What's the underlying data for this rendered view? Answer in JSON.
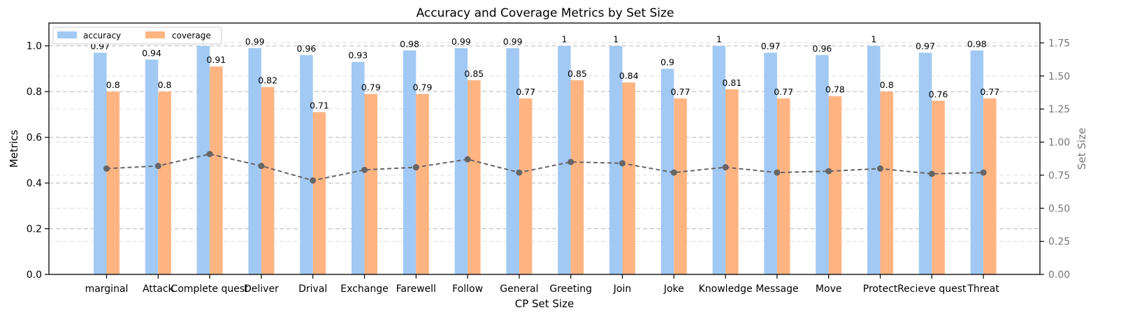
{
  "chart_data": {
    "type": "bar",
    "title": "Accuracy and Coverage Metrics by Set Size",
    "xlabel": "CP Set Size",
    "ylabel": "Metrics",
    "y2label": "Set Size",
    "categories": [
      "marginal",
      "Attack",
      "Complete quest",
      "Deliver",
      "Drival",
      "Exchange",
      "Farewell",
      "Follow",
      "General",
      "Greeting",
      "Join",
      "Joke",
      "Knowledge",
      "Message",
      "Move",
      "Protect",
      "Recieve quest",
      "Threat"
    ],
    "series": [
      {
        "name": "accuracy",
        "axis": "left",
        "kind": "bar",
        "color": "#a1c9f4",
        "values": [
          0.97,
          0.94,
          1,
          0.99,
          0.96,
          0.93,
          0.98,
          0.99,
          0.99,
          1,
          1,
          0.9,
          1,
          0.97,
          0.96,
          1,
          0.97,
          0.98
        ],
        "labels": [
          "0.97",
          "0.94",
          "1",
          "0.99",
          "0.96",
          "0.93",
          "0.98",
          "0.99",
          "0.99",
          "1",
          "1",
          "0.9",
          "1",
          "0.97",
          "0.96",
          "1",
          "0.97",
          "0.98"
        ]
      },
      {
        "name": "coverage",
        "axis": "left",
        "kind": "bar",
        "color": "#ffb482",
        "values": [
          0.8,
          0.8,
          0.91,
          0.82,
          0.71,
          0.79,
          0.79,
          0.85,
          0.77,
          0.85,
          0.84,
          0.77,
          0.81,
          0.77,
          0.78,
          0.8,
          0.76,
          0.77
        ],
        "labels": [
          "0.8",
          "0.8",
          "0.91",
          "0.82",
          "0.71",
          "0.79",
          "0.79",
          "0.85",
          "0.77",
          "0.85",
          "0.84",
          "0.77",
          "0.81",
          "0.77",
          "0.78",
          "0.8",
          "0.76",
          "0.77"
        ]
      },
      {
        "axis": "right",
        "kind": "line",
        "color": "#666666",
        "values": [
          0.8,
          0.82,
          0.91,
          0.82,
          0.71,
          0.79,
          0.81,
          0.87,
          0.77,
          0.85,
          0.84,
          0.77,
          0.81,
          0.77,
          0.78,
          0.8,
          0.76,
          0.77
        ]
      }
    ],
    "ylim": [
      0,
      1.1
    ],
    "yticks": [
      "0.0",
      "0.2",
      "0.4",
      "0.6",
      "0.8",
      "1.0"
    ],
    "y2lim": [
      0,
      1.9
    ],
    "y2ticks": [
      "0.00",
      "0.25",
      "0.50",
      "0.75",
      "1.00",
      "1.25",
      "1.50",
      "1.75"
    ],
    "grid": true,
    "legend": {
      "placement": "top-left",
      "ncol": 2
    }
  }
}
